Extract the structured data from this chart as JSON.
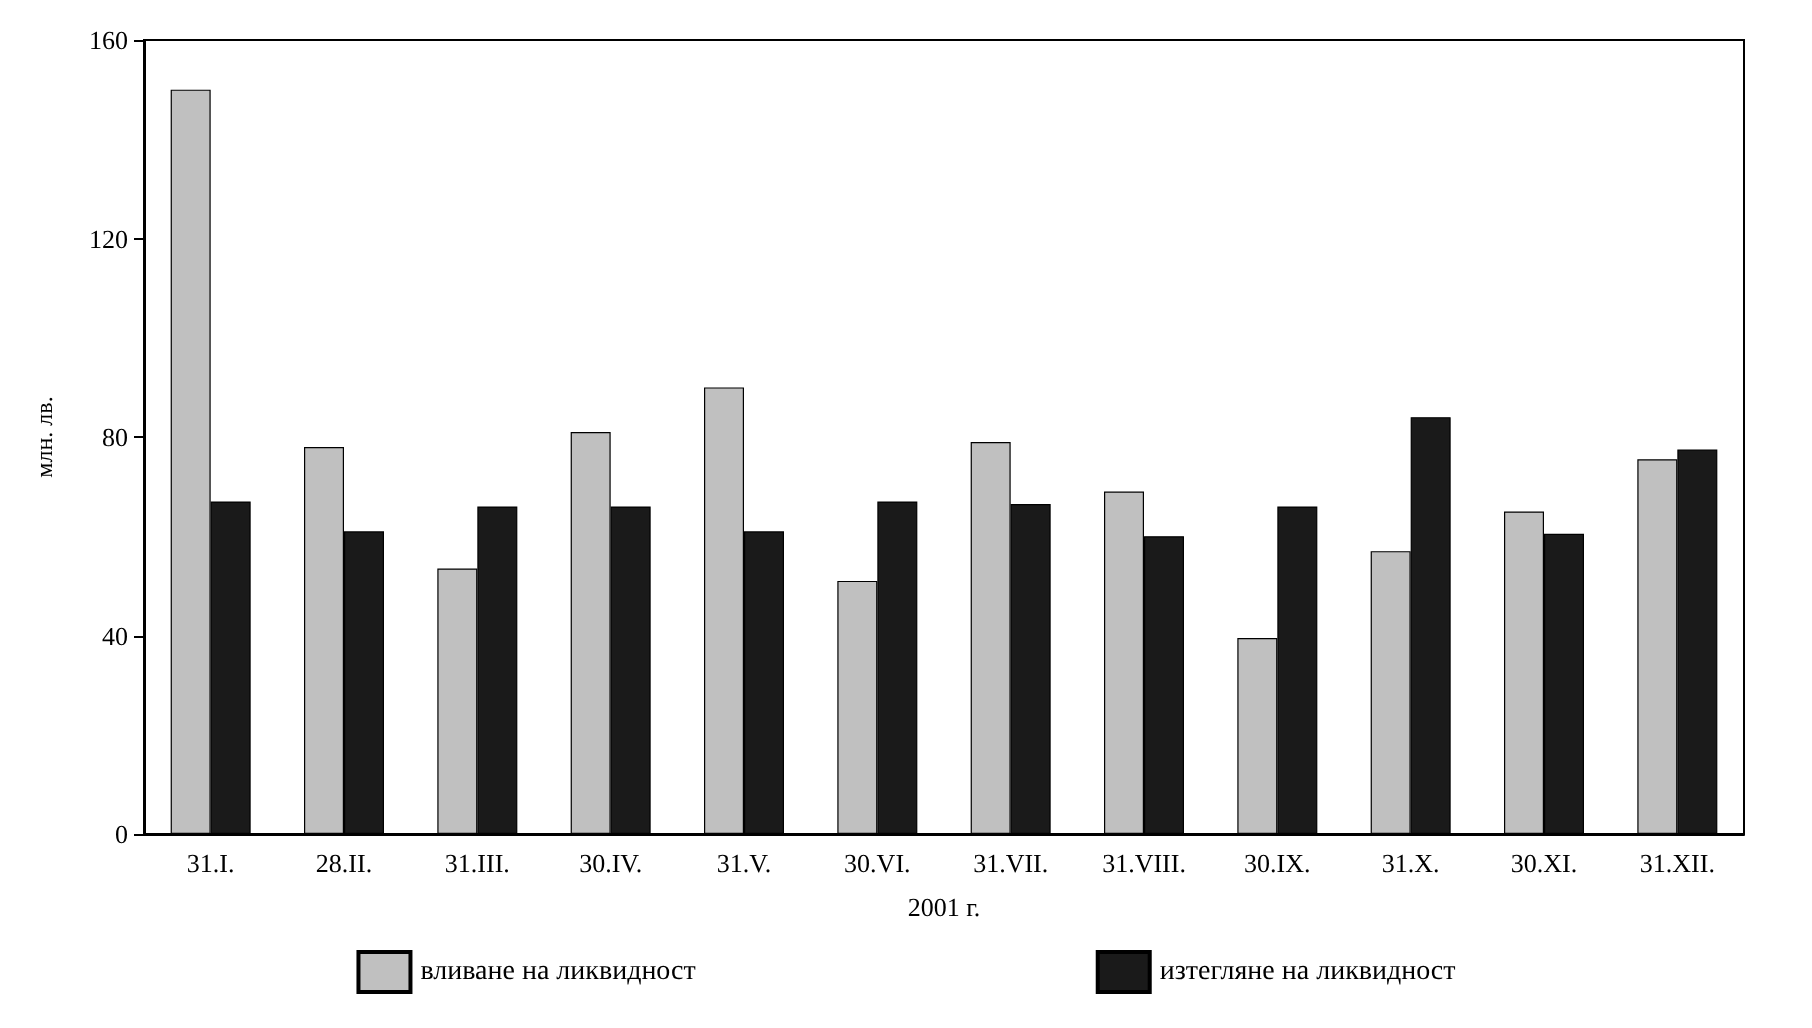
{
  "chart_data": {
    "type": "bar",
    "xlabel": "2001 г.",
    "ylabel": "млн. лв.",
    "categories": [
      "31.I.",
      "28.II.",
      "31.III.",
      "30.IV.",
      "31.V.",
      "30.VI.",
      "31.VII.",
      "31.VIII.",
      "30.IX.",
      "31.X.",
      "30.XI.",
      "31.XII."
    ],
    "series": [
      {
        "name": "вливане на ликвидност",
        "color": "#c0c0c0",
        "values": [
          150,
          78,
          53.5,
          81,
          90,
          51,
          79,
          69,
          39.5,
          57,
          65,
          75.5
        ]
      },
      {
        "name": "изтегляне на ликвидност",
        "color": "#1a1a1a",
        "values": [
          67,
          61,
          66,
          66,
          61,
          67,
          66.5,
          60,
          66,
          84,
          60.5,
          77.5
        ]
      }
    ],
    "ylim": [
      0,
      160
    ],
    "yticks": [
      0,
      40,
      80,
      120,
      160
    ],
    "grid": false,
    "legend": "bottom"
  }
}
